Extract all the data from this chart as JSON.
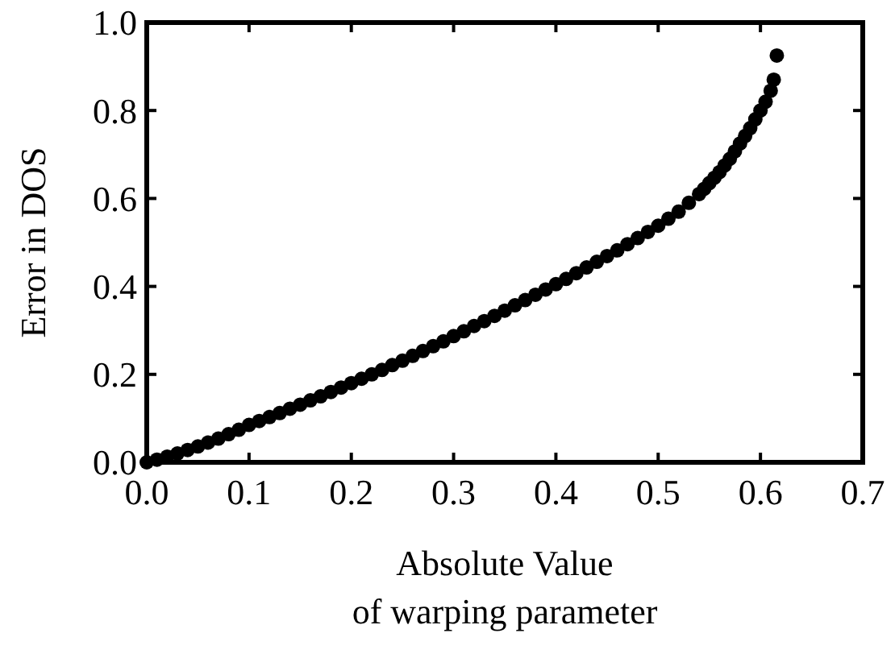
{
  "chart_data": {
    "type": "scatter",
    "xlabel": "Absolute Value\nof warping parameter",
    "ylabel": "Error in DOS",
    "xlim": [
      0,
      0.7
    ],
    "ylim": [
      0,
      1
    ],
    "xticks": [
      {
        "value": 0,
        "label": "0.0"
      },
      0.1,
      0.2,
      0.3,
      0.4,
      0.5,
      0.6,
      0.7
    ],
    "yticks": [
      {
        "value": 0,
        "label": "0.0"
      },
      0.2,
      0.4,
      0.6,
      0.8,
      {
        "value": 1,
        "label": "1.0"
      }
    ],
    "marker": "circle",
    "grid": false,
    "series": [
      {
        "color": "#000000",
        "x": [
          0,
          0.01,
          0.02,
          0.03,
          0.04,
          0.05,
          0.06,
          0.07,
          0.08,
          0.09,
          0.1,
          0.11,
          0.12,
          0.13,
          0.14,
          0.15,
          0.16,
          0.17,
          0.18,
          0.19,
          0.2,
          0.21,
          0.22,
          0.23,
          0.24,
          0.25,
          0.26,
          0.27,
          0.28,
          0.29,
          0.3,
          0.31,
          0.32,
          0.33,
          0.34,
          0.35,
          0.36,
          0.37,
          0.38,
          0.39,
          0.4,
          0.41,
          0.42,
          0.43,
          0.44,
          0.45,
          0.46,
          0.47,
          0.48,
          0.49,
          0.5,
          0.51,
          0.52,
          0.53,
          0.54,
          0.545,
          0.55,
          0.555,
          0.56,
          0.565,
          0.57,
          0.575,
          0.58,
          0.585,
          0.59,
          0.595,
          0.6,
          0.605,
          0.61,
          0.613,
          0.616
        ],
        "values": [
          0,
          0.006,
          0.013,
          0.02,
          0.028,
          0.036,
          0.045,
          0.054,
          0.064,
          0.074,
          0.085,
          0.094,
          0.103,
          0.112,
          0.122,
          0.131,
          0.141,
          0.15,
          0.16,
          0.17,
          0.18,
          0.19,
          0.2,
          0.21,
          0.221,
          0.231,
          0.242,
          0.253,
          0.264,
          0.275,
          0.287,
          0.298,
          0.31,
          0.321,
          0.333,
          0.345,
          0.357,
          0.369,
          0.381,
          0.393,
          0.405,
          0.417,
          0.43,
          0.443,
          0.456,
          0.469,
          0.482,
          0.496,
          0.51,
          0.524,
          0.538,
          0.554,
          0.57,
          0.59,
          0.61,
          0.622,
          0.635,
          0.647,
          0.66,
          0.675,
          0.69,
          0.707,
          0.725,
          0.742,
          0.76,
          0.78,
          0.8,
          0.82,
          0.845,
          0.87,
          0.925
        ]
      }
    ]
  }
}
